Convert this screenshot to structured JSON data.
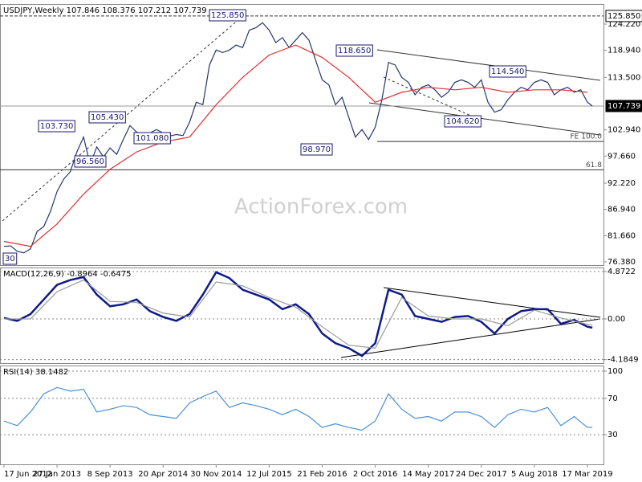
{
  "chart_data": [
    {
      "type": "line",
      "title": "USDJPY,Weekly 107.846 108.376 107.212 107.739",
      "watermark": "ActionForex.com",
      "x": [
        0,
        4,
        8,
        12,
        16,
        20,
        24,
        28,
        32,
        36,
        40,
        44,
        48,
        52,
        56,
        60,
        64,
        68,
        72,
        76,
        80,
        84,
        88,
        92,
        96,
        100,
        104,
        108,
        112,
        116,
        120,
        124,
        128,
        132,
        136,
        140,
        144,
        148,
        152,
        156,
        160,
        164,
        168,
        172,
        176,
        180,
        184,
        188,
        192,
        196,
        200,
        204,
        208,
        212,
        216,
        220,
        224,
        228,
        232,
        236,
        240,
        244,
        248,
        252,
        256,
        260,
        264,
        268,
        272,
        276,
        280,
        284,
        288,
        292,
        296,
        300,
        304,
        308,
        312,
        316,
        320,
        324,
        328,
        332,
        336,
        340,
        344,
        348,
        352,
        355
      ],
      "series": [
        {
          "color": "#27356b",
          "values": [
            79.5,
            79.6,
            78.5,
            78.2,
            79.0,
            82.5,
            83.5,
            86.5,
            90.5,
            93.0,
            94.5,
            98.5,
            101.5,
            96.0,
            99.5,
            97.5,
            99.3,
            98.0,
            101.0,
            103.8,
            102.5,
            102.0,
            102.3,
            103.0,
            102.3,
            101.7,
            102.0,
            101.8,
            104.5,
            108.5,
            108.0,
            116.0,
            119.0,
            118.5,
            119.0,
            120.0,
            119.5,
            123.0,
            123.5,
            124.5,
            123.0,
            120.5,
            121.5,
            119.5,
            121.0,
            122.5,
            121.0,
            117.0,
            113.0,
            112.0,
            108.0,
            109.5,
            105.5,
            101.5,
            103.0,
            101.0,
            103.5,
            109.0,
            116.5,
            116.0,
            113.5,
            112.5,
            110.0,
            111.5,
            112.0,
            111.0,
            109.5,
            110.5,
            112.5,
            113.0,
            112.5,
            111.5,
            113.0,
            108.5,
            106.5,
            107.0,
            109.0,
            110.5,
            111.5,
            111.0,
            112.5,
            113.0,
            112.5,
            110.0,
            111.0,
            111.5,
            110.5,
            111.0,
            108.5,
            107.739
          ]
        },
        {
          "color": "#e03030",
          "x": [
            0,
            16,
            32,
            48,
            64,
            80,
            96,
            112,
            128,
            144,
            160,
            176,
            192,
            208,
            224,
            240,
            256,
            272,
            288,
            304,
            320,
            336,
            352
          ],
          "values": [
            80.5,
            79.5,
            84,
            90,
            95,
            98.5,
            100.5,
            101.5,
            108,
            113.5,
            118,
            120,
            117.5,
            113.5,
            108.5,
            110.5,
            111.5,
            111,
            111.5,
            110.5,
            111,
            111,
            110.5
          ]
        }
      ],
      "xlim": [
        -2.4,
        361.7
      ],
      "ylim": [
        75.73,
        128.26
      ],
      "yticks": [
        {
          "value": 124.22,
          "label": "124.220"
        },
        {
          "value": 118.94,
          "label": "118.940"
        },
        {
          "value": 113.5,
          "label": "113.500"
        },
        {
          "value": 102.94,
          "label": "102.940"
        },
        {
          "value": 97.66,
          "label": "97.660"
        },
        {
          "value": 92.22,
          "label": "92.220"
        },
        {
          "value": 86.94,
          "label": "86.940"
        },
        {
          "value": 81.66,
          "label": "81.660"
        },
        {
          "value": 76.38,
          "label": "76.380"
        }
      ],
      "price_lines": [
        {
          "value": 125.85,
          "label": "125.850"
        },
        {
          "value": 107.739,
          "label": "107.739"
        }
      ],
      "levels": [
        {
          "value": 100.6,
          "label": "FE 100.0"
        },
        {
          "value": 94.9,
          "label": "61.8"
        }
      ],
      "annotations": [
        "125.850",
        "118.650",
        "114.540",
        "104.620",
        "98.970",
        "103.730",
        "105.430",
        "101.080",
        "96.560",
        "30"
      ],
      "grid": false
    },
    {
      "type": "line",
      "title": "MACD(12,26,9) -0.8964 -0.6475",
      "x": [
        0,
        8,
        16,
        24,
        32,
        40,
        48,
        56,
        64,
        72,
        80,
        88,
        96,
        104,
        112,
        120,
        128,
        136,
        144,
        152,
        160,
        168,
        176,
        184,
        192,
        200,
        208,
        216,
        224,
        232,
        240,
        248,
        256,
        264,
        272,
        280,
        288,
        296,
        304,
        312,
        320,
        328,
        336,
        344,
        352,
        355
      ],
      "series": [
        {
          "color": "#0d1a8a",
          "values": [
            0.1,
            -0.2,
            0.5,
            2.0,
            3.5,
            4.0,
            4.3,
            2.5,
            1.3,
            1.5,
            2.0,
            0.8,
            0.2,
            -0.2,
            0.5,
            2.5,
            4.8,
            4.2,
            3.0,
            2.5,
            2.0,
            1.0,
            1.5,
            0.5,
            -1.5,
            -2.5,
            -3.0,
            -3.8,
            -2.5,
            3.0,
            2.5,
            0.3,
            0.0,
            -0.3,
            0.2,
            0.3,
            -0.3,
            -1.5,
            0.0,
            0.8,
            1.0,
            1.0,
            -0.5,
            -0.1,
            -0.8,
            -0.8964
          ]
        },
        {
          "color": "#9a9a9a",
          "x": [
            0,
            16,
            32,
            48,
            64,
            80,
            96,
            112,
            128,
            144,
            160,
            176,
            192,
            208,
            224,
            240,
            256,
            272,
            288,
            304,
            320,
            336,
            352,
            355
          ],
          "values": [
            0.0,
            0.0,
            2.8,
            4.0,
            1.8,
            1.7,
            0.6,
            0.2,
            3.8,
            3.4,
            2.2,
            1.2,
            -0.8,
            -2.7,
            -3.0,
            2.2,
            0.3,
            0.0,
            0.0,
            -0.7,
            0.9,
            0.1,
            -0.55,
            -0.6475
          ]
        }
      ],
      "xlim": [
        -2.4,
        361.7
      ],
      "ylim": [
        -4.542,
        5.285
      ],
      "yticks": [
        4.8722,
        {
          "value": 0,
          "label": "0.00"
        },
        -4.1849
      ],
      "grid": true
    },
    {
      "type": "line",
      "title": "RSI(14) 38.1482",
      "x": [
        0,
        8,
        16,
        24,
        32,
        40,
        48,
        56,
        64,
        72,
        80,
        88,
        96,
        104,
        112,
        120,
        128,
        136,
        144,
        152,
        160,
        168,
        176,
        184,
        192,
        200,
        208,
        216,
        224,
        232,
        240,
        248,
        256,
        264,
        272,
        280,
        288,
        296,
        304,
        312,
        320,
        328,
        336,
        344,
        352,
        355
      ],
      "series": [
        {
          "color": "#4a90d9",
          "values": [
            45,
            40,
            55,
            75,
            82,
            78,
            80,
            55,
            58,
            62,
            60,
            52,
            50,
            48,
            65,
            72,
            78,
            60,
            65,
            62,
            58,
            52,
            58,
            50,
            38,
            42,
            38,
            35,
            45,
            75,
            58,
            48,
            50,
            45,
            55,
            55,
            50,
            38,
            52,
            58,
            55,
            60,
            40,
            50,
            38,
            38.1482
          ]
        }
      ],
      "xlim": [
        -2.4,
        361.7
      ],
      "ylim": [
        -2.66,
        106.2
      ],
      "yticks": [
        100,
        70,
        30
      ],
      "xticks": [
        {
          "value": 0,
          "label": "17 Jun 2012"
        },
        {
          "value": 32,
          "label": "27 Jan 2013"
        },
        {
          "value": 64,
          "label": "8 Sep 2013"
        },
        {
          "value": 96,
          "label": "20 Apr 2014"
        },
        {
          "value": 128,
          "label": "30 Nov 2014"
        },
        {
          "value": 160,
          "label": "12 Jul 2015"
        },
        {
          "value": 192,
          "label": "21 Feb 2016"
        },
        {
          "value": 224,
          "label": "2 Oct 2016"
        },
        {
          "value": 256,
          "label": "14 May 2017"
        },
        {
          "value": 288,
          "label": "24 Dec 2017"
        },
        {
          "value": 320,
          "label": "5 Aug 2018"
        },
        {
          "value": 352,
          "label": "17 Mar 2019"
        }
      ],
      "grid": true
    }
  ]
}
